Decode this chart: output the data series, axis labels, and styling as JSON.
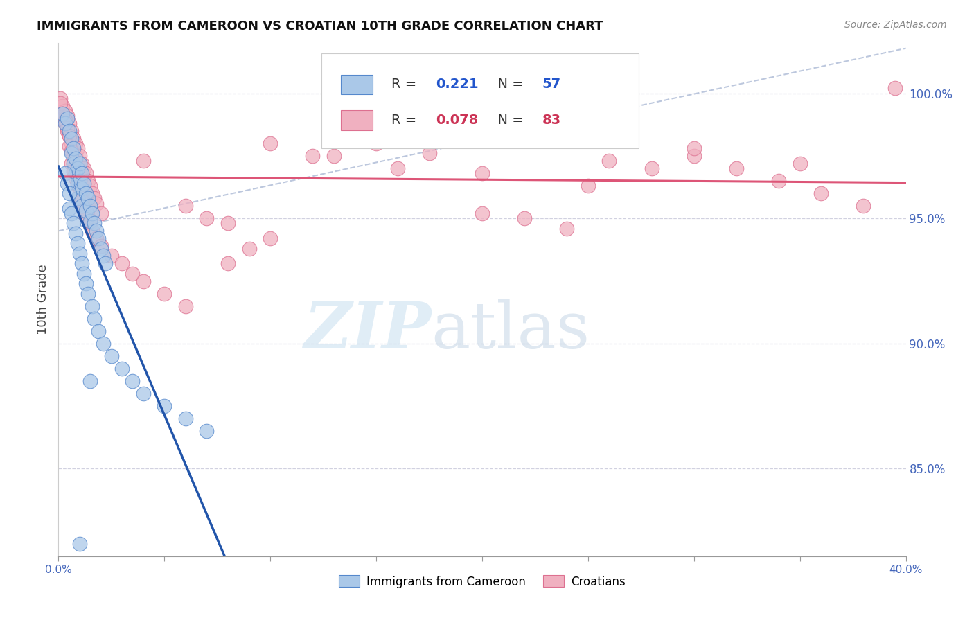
{
  "title": "IMMIGRANTS FROM CAMEROON VS CROATIAN 10TH GRADE CORRELATION CHART",
  "source": "Source: ZipAtlas.com",
  "ylabel": "10th Grade",
  "blue_label": "Immigrants from Cameroon",
  "pink_label": "Croatians",
  "legend_blue_r": "R = ",
  "legend_blue_r_val": "0.221",
  "legend_blue_n": "N = ",
  "legend_blue_n_val": "57",
  "legend_pink_r": "R = ",
  "legend_pink_r_val": "0.078",
  "legend_pink_n": "N = ",
  "legend_pink_n_val": "83",
  "watermark_zip": "ZIP",
  "watermark_atlas": "atlas",
  "xlim": [
    0.0,
    0.4
  ],
  "ylim": [
    81.5,
    102.0
  ],
  "xtick_positions": [
    0.0,
    0.05,
    0.1,
    0.15,
    0.2,
    0.25,
    0.3,
    0.35,
    0.4
  ],
  "ytick_positions": [
    85.0,
    90.0,
    95.0,
    100.0
  ],
  "blue_face": "#aac8e8",
  "blue_edge": "#5588cc",
  "pink_face": "#f0b0c0",
  "pink_edge": "#dd7090",
  "blue_line_color": "#2255aa",
  "pink_line_color": "#dd5577",
  "dashed_color": "#99aacc",
  "grid_color": "#ccccdd",
  "axis_color": "#4466bb",
  "blue_text_color": "#2255cc",
  "pink_text_color": "#cc3355",
  "blue_scatter_x": [
    0.002,
    0.003,
    0.004,
    0.005,
    0.006,
    0.006,
    0.007,
    0.007,
    0.008,
    0.008,
    0.009,
    0.009,
    0.009,
    0.01,
    0.01,
    0.011,
    0.011,
    0.011,
    0.012,
    0.013,
    0.013,
    0.014,
    0.015,
    0.015,
    0.016,
    0.017,
    0.018,
    0.019,
    0.02,
    0.021,
    0.022,
    0.003,
    0.004,
    0.005,
    0.005,
    0.006,
    0.007,
    0.008,
    0.009,
    0.01,
    0.011,
    0.012,
    0.013,
    0.014,
    0.016,
    0.017,
    0.019,
    0.021,
    0.025,
    0.03,
    0.035,
    0.04,
    0.05,
    0.06,
    0.07,
    0.01,
    0.015
  ],
  "blue_scatter_y": [
    99.2,
    98.8,
    99.0,
    98.5,
    98.2,
    97.6,
    97.8,
    97.2,
    97.4,
    96.8,
    97.0,
    96.4,
    95.8,
    97.2,
    96.5,
    96.8,
    96.2,
    95.5,
    96.4,
    96.0,
    95.3,
    95.8,
    95.5,
    94.9,
    95.2,
    94.8,
    94.5,
    94.2,
    93.8,
    93.5,
    93.2,
    96.8,
    96.4,
    96.0,
    95.4,
    95.2,
    94.8,
    94.4,
    94.0,
    93.6,
    93.2,
    92.8,
    92.4,
    92.0,
    91.5,
    91.0,
    90.5,
    90.0,
    89.5,
    89.0,
    88.5,
    88.0,
    87.5,
    87.0,
    86.5,
    82.0,
    88.5
  ],
  "pink_scatter_x": [
    0.001,
    0.002,
    0.002,
    0.003,
    0.003,
    0.004,
    0.004,
    0.005,
    0.005,
    0.006,
    0.006,
    0.007,
    0.007,
    0.007,
    0.008,
    0.008,
    0.009,
    0.01,
    0.01,
    0.011,
    0.011,
    0.012,
    0.012,
    0.013,
    0.014,
    0.015,
    0.016,
    0.017,
    0.018,
    0.02,
    0.001,
    0.002,
    0.003,
    0.004,
    0.005,
    0.005,
    0.006,
    0.006,
    0.007,
    0.008,
    0.009,
    0.01,
    0.011,
    0.012,
    0.013,
    0.015,
    0.016,
    0.018,
    0.02,
    0.025,
    0.03,
    0.035,
    0.04,
    0.05,
    0.06,
    0.08,
    0.1,
    0.12,
    0.15,
    0.175,
    0.2,
    0.22,
    0.24,
    0.26,
    0.28,
    0.3,
    0.32,
    0.34,
    0.36,
    0.38,
    0.395,
    0.06,
    0.08,
    0.1,
    0.13,
    0.16,
    0.2,
    0.25,
    0.3,
    0.35,
    0.04,
    0.07,
    0.09
  ],
  "pink_scatter_y": [
    99.8,
    99.5,
    99.0,
    99.3,
    98.8,
    99.1,
    98.5,
    98.8,
    98.3,
    98.5,
    98.0,
    98.2,
    97.7,
    97.3,
    98.0,
    97.5,
    97.8,
    97.5,
    97.0,
    97.2,
    96.8,
    97.0,
    96.5,
    96.8,
    96.5,
    96.3,
    96.0,
    95.8,
    95.6,
    95.2,
    99.6,
    99.2,
    98.9,
    98.6,
    98.3,
    97.9,
    97.7,
    97.2,
    96.9,
    96.6,
    96.3,
    96.0,
    95.7,
    95.4,
    95.1,
    94.8,
    94.5,
    94.2,
    93.9,
    93.5,
    93.2,
    92.8,
    92.5,
    92.0,
    91.5,
    94.8,
    98.0,
    97.5,
    98.0,
    97.6,
    95.2,
    95.0,
    94.6,
    97.3,
    97.0,
    97.5,
    97.0,
    96.5,
    96.0,
    95.5,
    100.2,
    95.5,
    93.2,
    94.2,
    97.5,
    97.0,
    96.8,
    96.3,
    97.8,
    97.2,
    97.3,
    95.0,
    93.8
  ]
}
